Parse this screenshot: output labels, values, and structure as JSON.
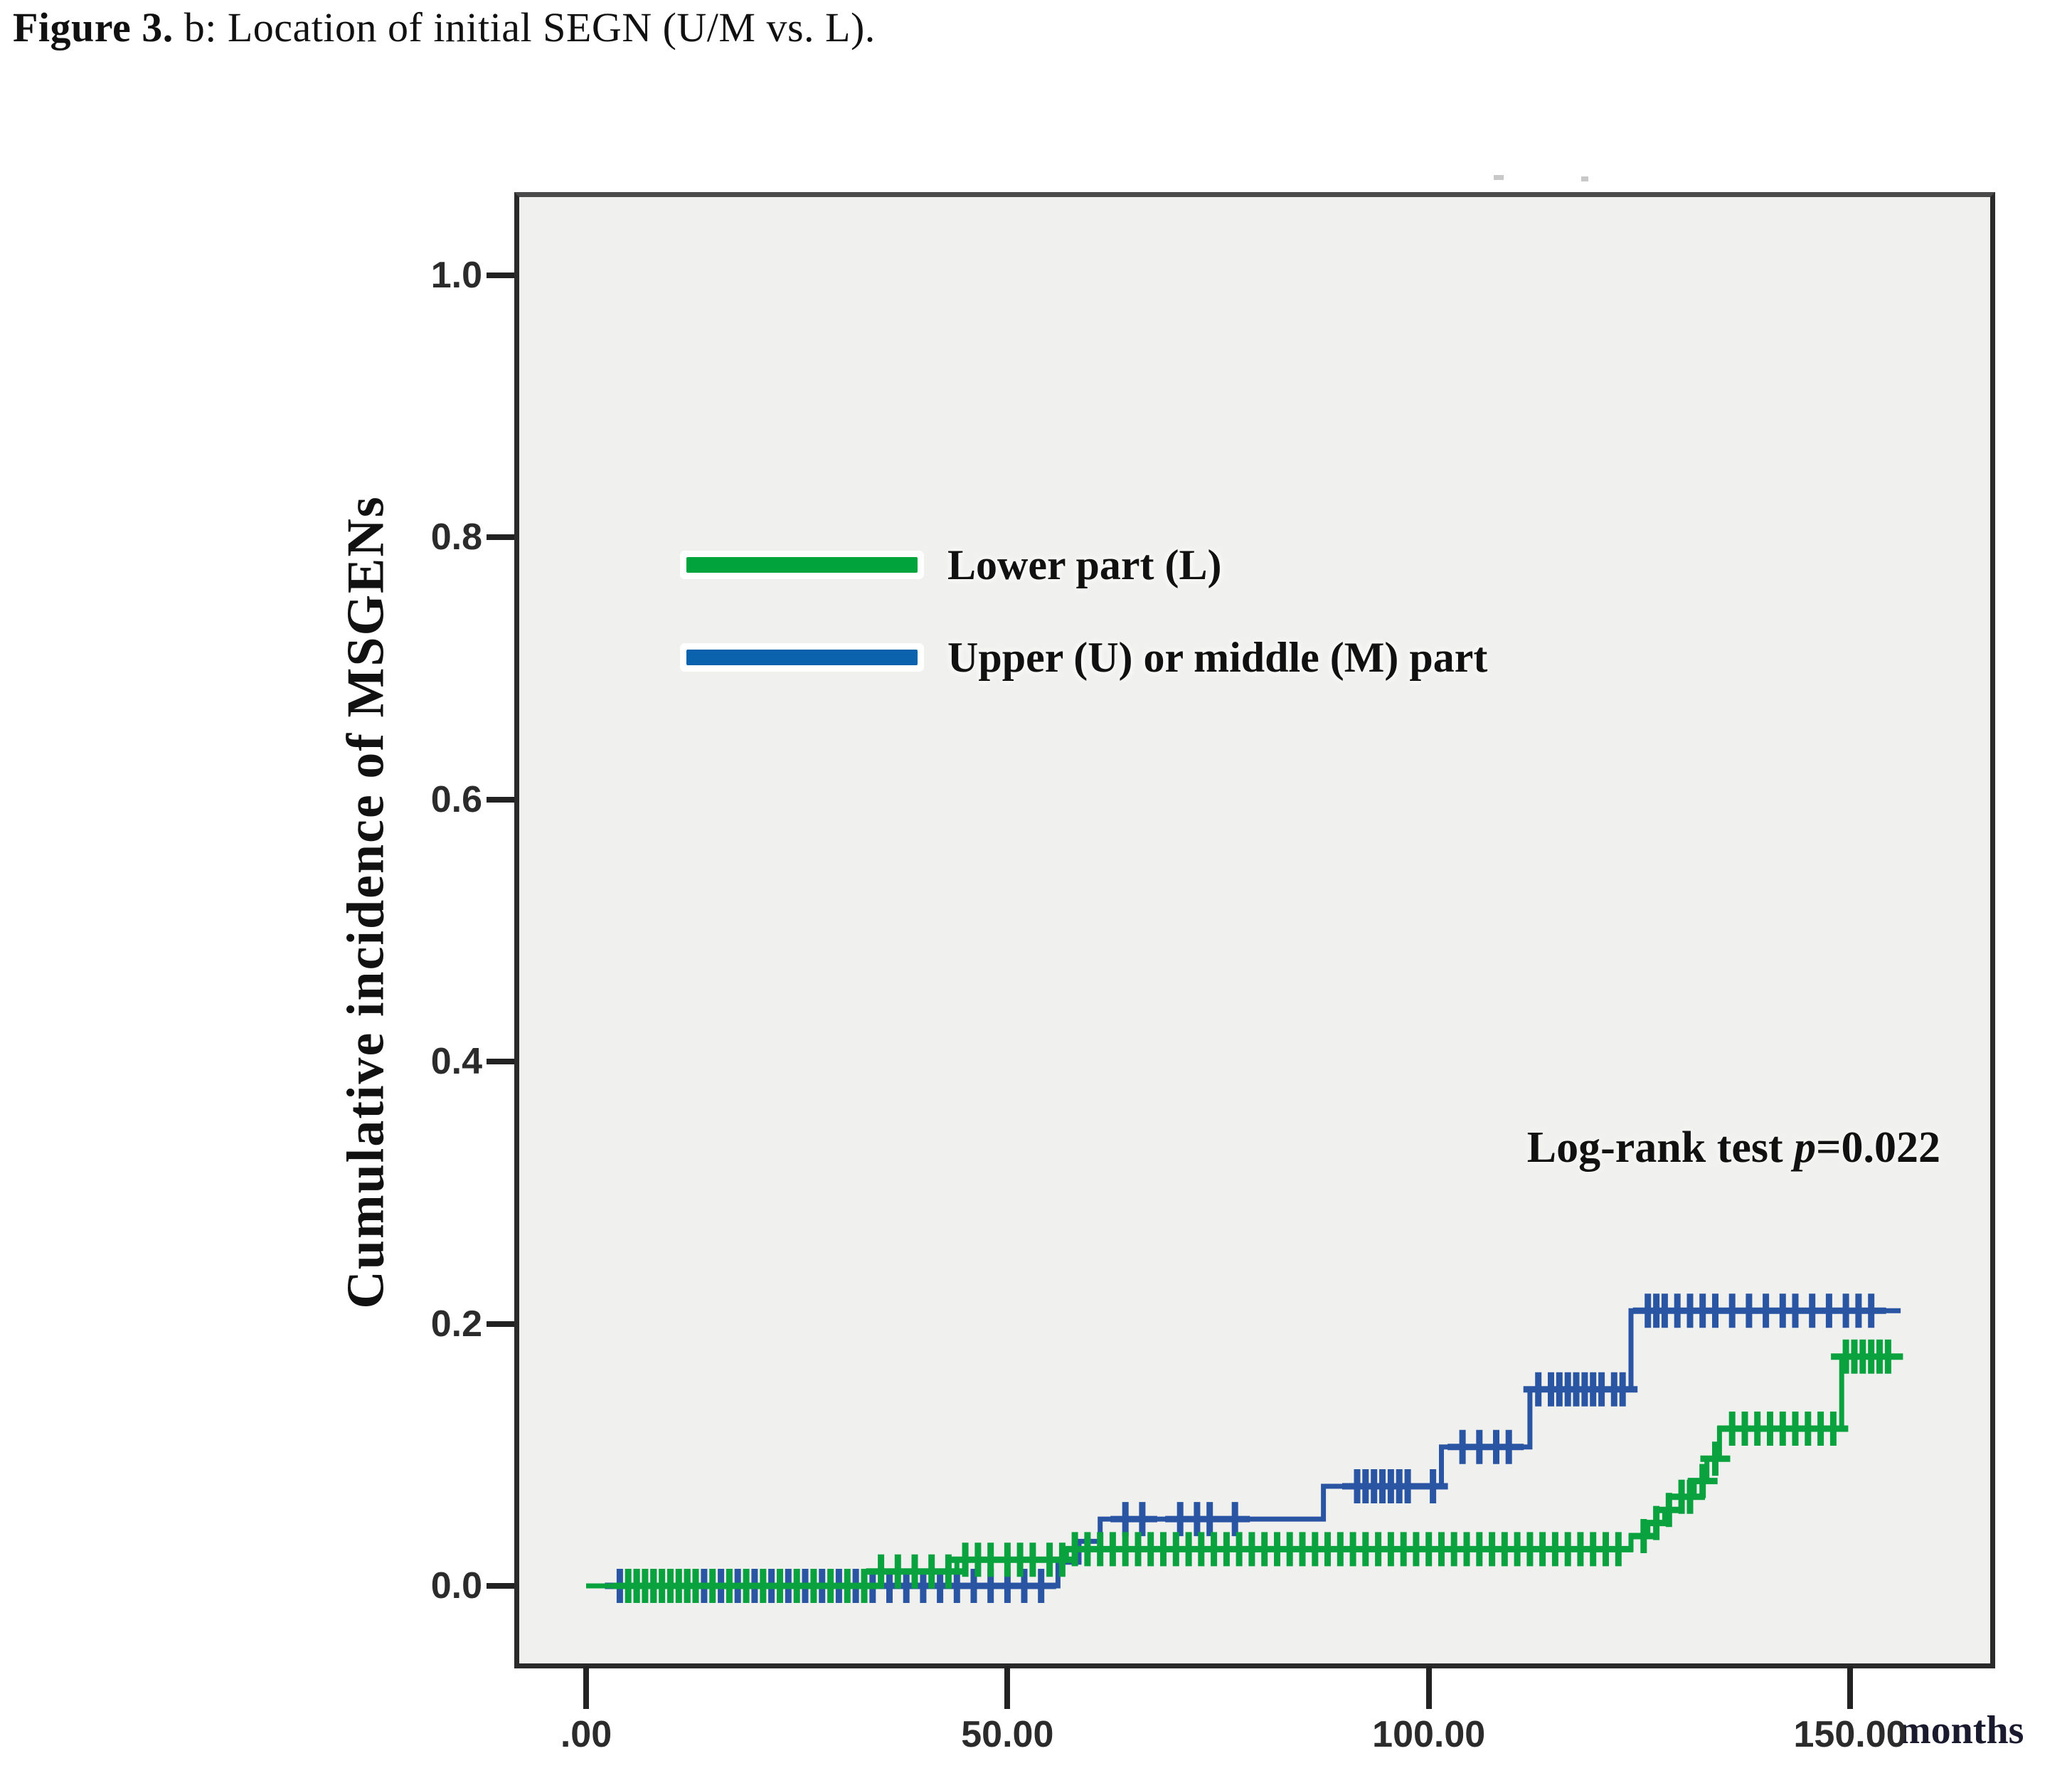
{
  "figure": {
    "title_bold": "Figure 3.",
    "title_rest": " b: Location of initial SEGN (U/M vs. L)."
  },
  "chart_data": {
    "type": "line",
    "subtype": "cumulative-incidence-step-curves-with-censor-marks",
    "title": "",
    "xlabel": "months",
    "ylabel": "Cumulative incidence of MSGENs",
    "xlim": [
      -8.5,
      167
    ],
    "ylim": [
      -0.065,
      1.06
    ],
    "grid": false,
    "plot_background": "#f0f0ee",
    "xticks": [
      0,
      50,
      100,
      150
    ],
    "xtick_labels": [
      ".00",
      "50.00",
      "100.00",
      "150.00"
    ],
    "yticks": [
      0,
      0.2,
      0.4,
      0.6,
      0.8,
      1.0
    ],
    "ytick_labels": [
      "0.0",
      "0.2",
      "0.4",
      "0.6",
      "0.8",
      "1.0"
    ],
    "annotation": {
      "prefix": "Log-rank test ",
      "italic": "p",
      "suffix": "=0.022"
    },
    "legend": {
      "position": "upper-left-inside",
      "entries": [
        {
          "label": "Lower part (L)",
          "color": "#00a33c"
        },
        {
          "label": "Upper (U) or middle (M) part",
          "color": "#0b63ae"
        }
      ]
    },
    "series": [
      {
        "name": "Lower part (L)",
        "color": "#0aa23f",
        "steps": [
          [
            0,
            0
          ],
          [
            35,
            0.011
          ],
          [
            44,
            0.02
          ],
          [
            57,
            0.028
          ],
          [
            124,
            0.038
          ],
          [
            126,
            0.048
          ],
          [
            128,
            0.058
          ],
          [
            130,
            0.068
          ],
          [
            131.5,
            0.08
          ],
          [
            133,
            0.097
          ],
          [
            134.5,
            0.12
          ],
          [
            149,
            0.175
          ]
        ],
        "end": 155.5,
        "censors": [
          5,
          6,
          7,
          8,
          9,
          10,
          11,
          12,
          13,
          15,
          17,
          19,
          21,
          23,
          25,
          27,
          29,
          31,
          33,
          35,
          37,
          39,
          41,
          43,
          45,
          46.5,
          48,
          50,
          51.5,
          53,
          55,
          56.5,
          58,
          59.5,
          61,
          62.5,
          64,
          65.5,
          67,
          68.5,
          70,
          71.5,
          73,
          74.5,
          76,
          77.5,
          79,
          80.5,
          82,
          83.5,
          85,
          86.5,
          88,
          89.5,
          91,
          92.5,
          94,
          95.5,
          97,
          98.5,
          100,
          101.5,
          103,
          104.5,
          106,
          107.5,
          109,
          110.5,
          112,
          113.5,
          115,
          116.5,
          118,
          119.5,
          121,
          122.5,
          125.5,
          127,
          128.5,
          130,
          131,
          132.5,
          134,
          136,
          137.5,
          139,
          140.5,
          142,
          143.5,
          145,
          146.5,
          148,
          149.5,
          150.5,
          151.5,
          152.5,
          153.5,
          154.5
        ]
      },
      {
        "name": "Upper (U) or middle (M) part",
        "color": "#2a55a3",
        "steps": [
          [
            0,
            0
          ],
          [
            56,
            0.018
          ],
          [
            58.5,
            0.034
          ],
          [
            61,
            0.051
          ],
          [
            87.5,
            0.076
          ],
          [
            101.5,
            0.106
          ],
          [
            112,
            0.15
          ],
          [
            124,
            0.21
          ]
        ],
        "end": 156,
        "censors": [
          4,
          6,
          8,
          10,
          12,
          14,
          16,
          18,
          20,
          22,
          24,
          26,
          28,
          30,
          32,
          34,
          36,
          38,
          40,
          42,
          44,
          46,
          48,
          50,
          52,
          54,
          64,
          66,
          70.5,
          72.5,
          74,
          77,
          91.5,
          92.5,
          93.5,
          94.5,
          95.5,
          96.5,
          97.5,
          100.5,
          104,
          106,
          108,
          109.5,
          113,
          114.5,
          115.5,
          116.5,
          117.5,
          118.5,
          119.5,
          120.5,
          122,
          123,
          126,
          127,
          128,
          129.5,
          131,
          132.5,
          134,
          136,
          138,
          140,
          142,
          143.5,
          145.5,
          147.5,
          149.5,
          151,
          152.5
        ]
      }
    ]
  }
}
